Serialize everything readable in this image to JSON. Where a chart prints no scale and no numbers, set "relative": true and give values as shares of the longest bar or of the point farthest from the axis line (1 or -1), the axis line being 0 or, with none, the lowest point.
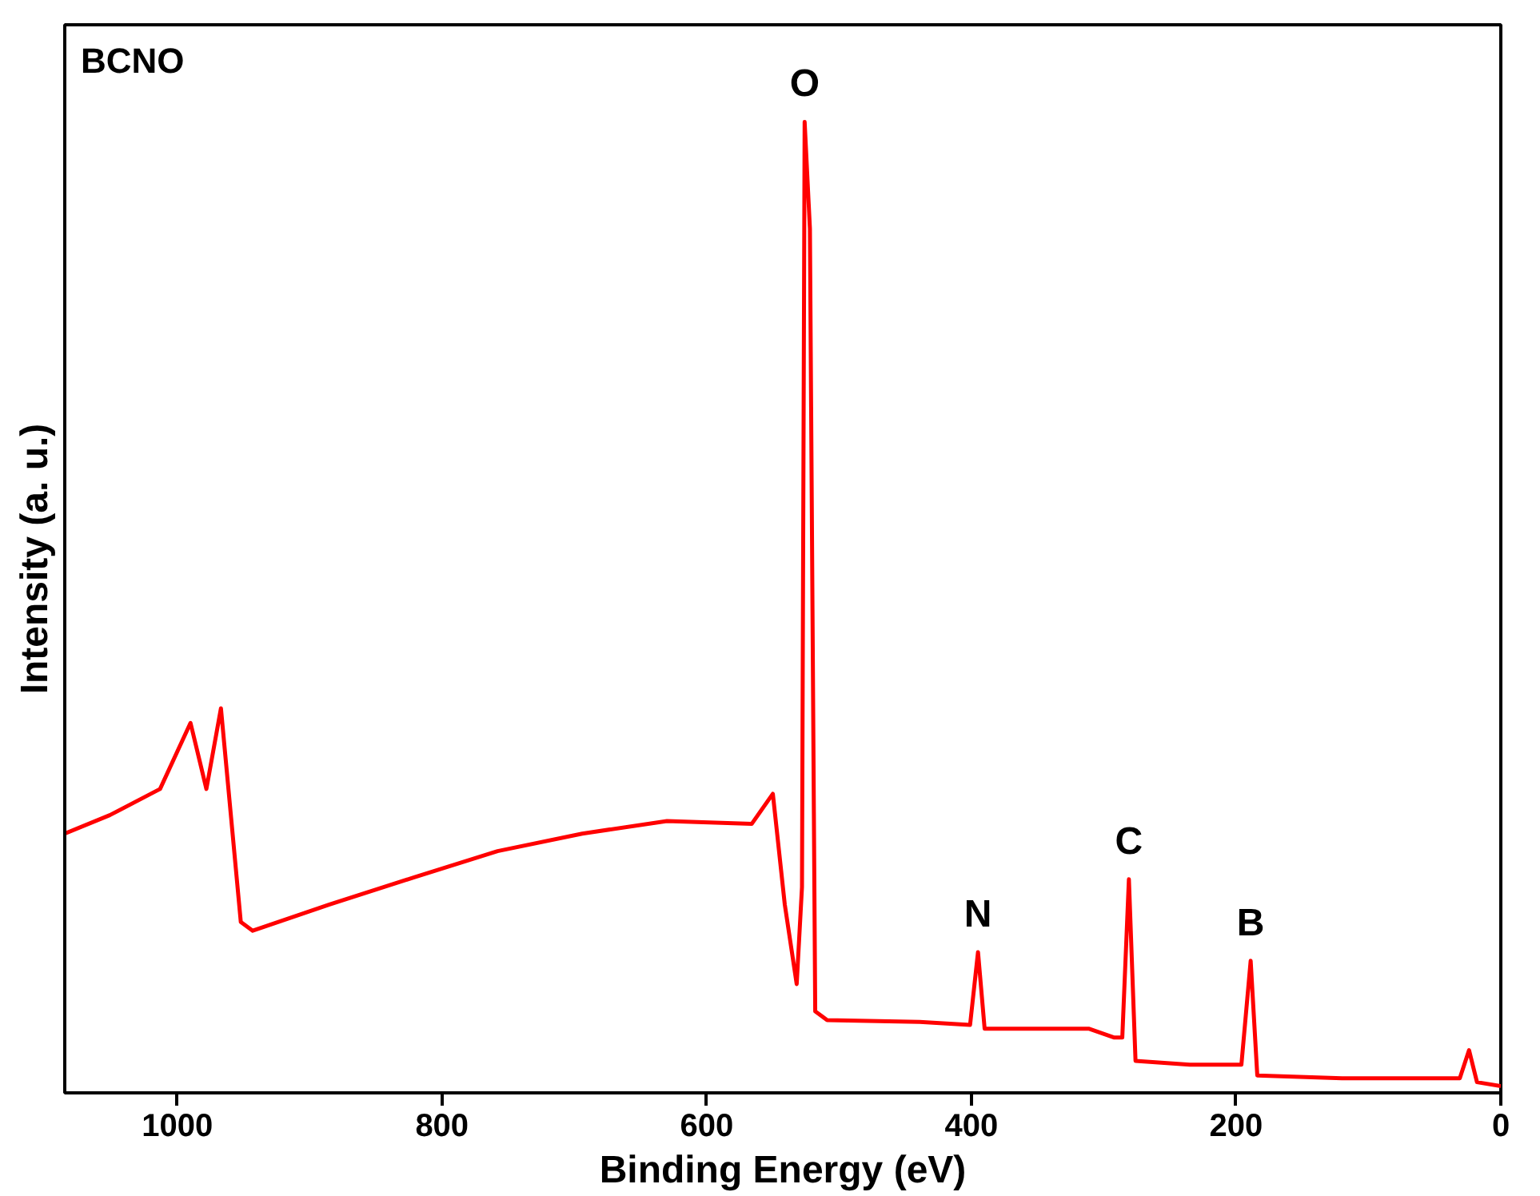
{
  "chart_data": {
    "type": "line",
    "xlabel": "Binding Energy (eV)",
    "ylabel": "Intensity (a. u.)",
    "relative": true,
    "xlim": [
      1085,
      0
    ],
    "xticks": [
      1000,
      800,
      600,
      400,
      200,
      0
    ],
    "grid": false,
    "marker": "none",
    "line_style": "solid",
    "series": [
      {
        "color": "#ff0000",
        "x": [
          1085,
          1051,
          1013,
          990,
          978,
          967,
          952,
          943,
          885,
          821,
          758,
          694,
          630,
          566,
          550,
          541,
          532,
          528,
          526,
          522,
          518,
          509,
          439,
          401,
          395,
          390,
          311,
          292,
          286,
          281,
          276,
          235,
          196,
          189,
          184,
          120,
          31,
          24,
          18,
          0
        ],
        "values": [
          0.267,
          0.286,
          0.313,
          0.381,
          0.313,
          0.396,
          0.176,
          0.167,
          0.194,
          0.222,
          0.249,
          0.267,
          0.28,
          0.277,
          0.308,
          0.194,
          0.112,
          0.212,
          1.0,
          0.89,
          0.084,
          0.075,
          0.073,
          0.07,
          0.145,
          0.066,
          0.066,
          0.057,
          0.057,
          0.22,
          0.033,
          0.029,
          0.029,
          0.136,
          0.018,
          0.015,
          0.015,
          0.044,
          0.011,
          0.007
        ]
      }
    ],
    "annotations": [
      "BCNO",
      {
        "text": "O",
        "x": 526,
        "y": 1.0
      },
      {
        "text": "N",
        "x": 395,
        "y": 0.145
      },
      {
        "text": "C",
        "x": 281,
        "y": 0.22
      },
      {
        "text": "B",
        "x": 189,
        "y": 0.136
      }
    ]
  }
}
